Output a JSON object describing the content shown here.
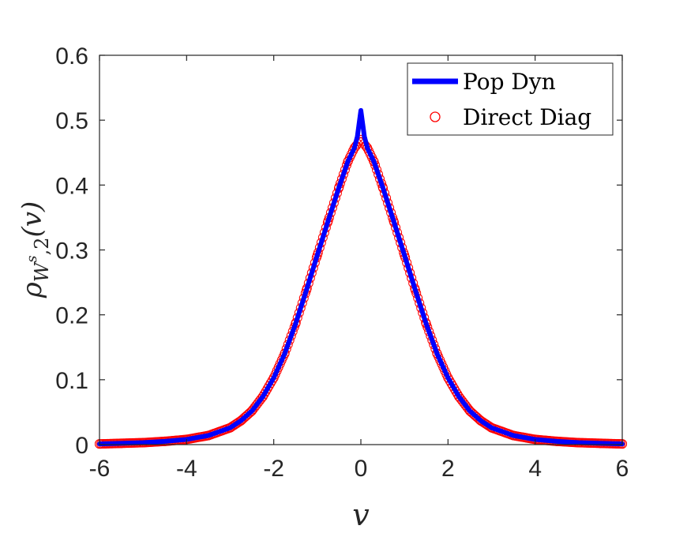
{
  "chart_data": {
    "type": "line",
    "xlabel": "v",
    "ylabel": {
      "base": "ρ",
      "sub_letter": "W",
      "sup": "s",
      "sub_tail": ",2",
      "arg": "(v)"
    },
    "xlim": [
      -6,
      6
    ],
    "ylim": [
      0,
      0.6
    ],
    "x_ticks": [
      -6,
      -4,
      -2,
      0,
      2,
      4,
      6
    ],
    "y_ticks": [
      0,
      0.1,
      0.2,
      0.3,
      0.4,
      0.5,
      0.6
    ],
    "x_tick_labels": [
      "-6",
      "-4",
      "-2",
      "0",
      "2",
      "4",
      "6"
    ],
    "y_tick_labels": [
      "0",
      "0.1",
      "0.2",
      "0.3",
      "0.4",
      "0.5",
      "0.6"
    ],
    "grid": false,
    "legend_position": "top-right",
    "series": [
      {
        "name": "Pop Dyn",
        "style": "line",
        "color": "#0000ff",
        "x": [
          -6,
          -5.5,
          -5,
          -4.5,
          -4,
          -3.5,
          -3,
          -2.75,
          -2.5,
          -2.25,
          -2,
          -1.75,
          -1.5,
          -1.25,
          -1,
          -0.75,
          -0.5,
          -0.3,
          -0.15,
          -0.08,
          -0.04,
          0,
          0.04,
          0.08,
          0.15,
          0.3,
          0.5,
          0.75,
          1,
          1.25,
          1.5,
          1.75,
          2,
          2.25,
          2.5,
          2.75,
          3,
          3.5,
          4,
          4.5,
          5,
          5.5,
          6
        ],
        "y": [
          0.001,
          0.002,
          0.003,
          0.005,
          0.008,
          0.014,
          0.026,
          0.037,
          0.052,
          0.074,
          0.103,
          0.14,
          0.186,
          0.238,
          0.292,
          0.345,
          0.397,
          0.436,
          0.457,
          0.475,
          0.495,
          0.515,
          0.495,
          0.475,
          0.457,
          0.436,
          0.397,
          0.345,
          0.292,
          0.238,
          0.186,
          0.14,
          0.103,
          0.074,
          0.052,
          0.037,
          0.026,
          0.014,
          0.008,
          0.005,
          0.003,
          0.002,
          0.001
        ]
      },
      {
        "name": "Direct Diag",
        "style": "markers",
        "marker": "circle",
        "color": "#ff0000",
        "x": [
          -6,
          -5.5,
          -5,
          -4.5,
          -4,
          -3.5,
          -3,
          -2.75,
          -2.5,
          -2.25,
          -2,
          -1.75,
          -1.5,
          -1.25,
          -1,
          -0.75,
          -0.5,
          -0.3,
          -0.15,
          0,
          0.15,
          0.3,
          0.5,
          0.75,
          1,
          1.25,
          1.5,
          1.75,
          2,
          2.25,
          2.5,
          2.75,
          3,
          3.5,
          4,
          4.5,
          5,
          5.5,
          6
        ],
        "y": [
          0.001,
          0.002,
          0.003,
          0.005,
          0.008,
          0.014,
          0.026,
          0.037,
          0.052,
          0.074,
          0.103,
          0.14,
          0.186,
          0.238,
          0.292,
          0.345,
          0.397,
          0.436,
          0.457,
          0.47,
          0.457,
          0.436,
          0.397,
          0.345,
          0.292,
          0.238,
          0.186,
          0.14,
          0.103,
          0.074,
          0.052,
          0.037,
          0.026,
          0.014,
          0.008,
          0.005,
          0.003,
          0.002,
          0.001
        ]
      }
    ]
  }
}
